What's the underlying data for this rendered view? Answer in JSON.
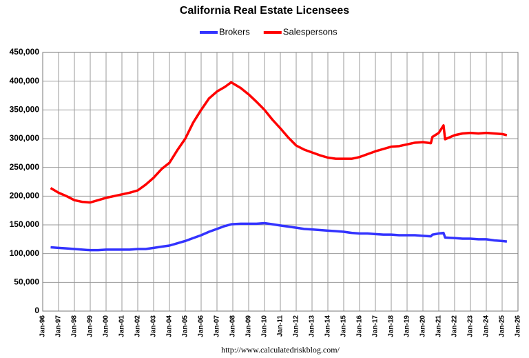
{
  "chart_data": {
    "type": "line",
    "title": "California Real Estate Licensees",
    "source": "http://www.calculatedriskblog.com/",
    "x": [
      1996.5,
      1997,
      1997.5,
      1998,
      1998.5,
      1999,
      1999.5,
      2000,
      2000.5,
      2001,
      2001.5,
      2002,
      2002.5,
      2003,
      2003.5,
      2004,
      2004.5,
      2005,
      2005.5,
      2006,
      2006.5,
      2007,
      2007.5,
      2007.9,
      2008.5,
      2009,
      2009.5,
      2010,
      2010.5,
      2011,
      2011.5,
      2012,
      2012.5,
      2013,
      2013.5,
      2014,
      2014.5,
      2015,
      2015.5,
      2016,
      2016.5,
      2017,
      2017.5,
      2018,
      2018.5,
      2019,
      2019.5,
      2020,
      2020.5,
      2020.6,
      2021,
      2021.3,
      2021.4,
      2022,
      2022.5,
      2023,
      2023.5,
      2024,
      2024.5,
      2025,
      2025.3
    ],
    "series": [
      {
        "name": "Brokers",
        "color": "#3333ff",
        "values": [
          111000,
          110000,
          109000,
          108000,
          107000,
          106000,
          106000,
          107000,
          107000,
          107000,
          107000,
          108000,
          108000,
          110000,
          112000,
          114000,
          118000,
          122000,
          127000,
          132000,
          138000,
          143000,
          148000,
          151000,
          152000,
          152000,
          152000,
          153000,
          151000,
          149000,
          147000,
          145000,
          143000,
          142000,
          141000,
          140000,
          139000,
          138000,
          136000,
          135000,
          135000,
          134000,
          133000,
          133000,
          132000,
          132000,
          132000,
          131000,
          130000,
          133000,
          135000,
          136000,
          128000,
          127000,
          126000,
          126000,
          125000,
          125000,
          123000,
          122000,
          121000
        ]
      },
      {
        "name": "Salespersons",
        "color": "#ff0000",
        "values": [
          214000,
          206000,
          200000,
          193000,
          190000,
          189000,
          193000,
          197000,
          200000,
          203000,
          206000,
          210000,
          220000,
          232000,
          247000,
          258000,
          280000,
          300000,
          328000,
          350000,
          370000,
          382000,
          390000,
          398000,
          388000,
          377000,
          364000,
          350000,
          333000,
          318000,
          302000,
          288000,
          281000,
          276000,
          271000,
          267000,
          265000,
          265000,
          265000,
          268000,
          273000,
          278000,
          282000,
          286000,
          287000,
          290000,
          293000,
          294000,
          292000,
          303000,
          310000,
          323000,
          299000,
          306000,
          309000,
          310000,
          309000,
          310000,
          309000,
          308000,
          306000
        ]
      }
    ],
    "xlim": [
      1996,
      2026
    ],
    "xticks": [
      {
        "value": 1996,
        "label": "Jan-96"
      },
      {
        "value": 1997,
        "label": "Jan-97"
      },
      {
        "value": 1998,
        "label": "Jan-98"
      },
      {
        "value": 1999,
        "label": "Jan-99"
      },
      {
        "value": 2000,
        "label": "Jan-00"
      },
      {
        "value": 2001,
        "label": "Jan-01"
      },
      {
        "value": 2002,
        "label": "Jan-02"
      },
      {
        "value": 2003,
        "label": "Jan-03"
      },
      {
        "value": 2004,
        "label": "Jan-04"
      },
      {
        "value": 2005,
        "label": "Jan-05"
      },
      {
        "value": 2006,
        "label": "Jan-06"
      },
      {
        "value": 2007,
        "label": "Jan-07"
      },
      {
        "value": 2008,
        "label": "Jan-08"
      },
      {
        "value": 2009,
        "label": "Jan-09"
      },
      {
        "value": 2010,
        "label": "Jan-10"
      },
      {
        "value": 2011,
        "label": "Jan-11"
      },
      {
        "value": 2012,
        "label": "Jan-12"
      },
      {
        "value": 2013,
        "label": "Jan-13"
      },
      {
        "value": 2014,
        "label": "Jan-14"
      },
      {
        "value": 2015,
        "label": "Jan-15"
      },
      {
        "value": 2016,
        "label": "Jan-16"
      },
      {
        "value": 2017,
        "label": "Jan-17"
      },
      {
        "value": 2018,
        "label": "Jan-18"
      },
      {
        "value": 2019,
        "label": "Jan-19"
      },
      {
        "value": 2020,
        "label": "Jan-20"
      },
      {
        "value": 2021,
        "label": "Jan-21"
      },
      {
        "value": 2022,
        "label": "Jan-22"
      },
      {
        "value": 2023,
        "label": "Jan-23"
      },
      {
        "value": 2024,
        "label": "Jan-24"
      },
      {
        "value": 2025,
        "label": "Jan-25"
      },
      {
        "value": 2026,
        "label": "Jan-26"
      }
    ],
    "ylim": [
      0,
      450000
    ],
    "yticks": [
      0,
      {
        "value": 50000,
        "label": "50,000"
      },
      {
        "value": 100000,
        "label": "100,000"
      },
      {
        "value": 150000,
        "label": "150,000"
      },
      {
        "value": 200000,
        "label": "200,000"
      },
      {
        "value": 250000,
        "label": "250,000"
      },
      {
        "value": 300000,
        "label": "300,000"
      },
      {
        "value": 350000,
        "label": "350,000"
      },
      {
        "value": 400000,
        "label": "400,000"
      },
      {
        "value": 450000,
        "label": "450,000"
      }
    ],
    "grid": true,
    "legend": "top"
  }
}
